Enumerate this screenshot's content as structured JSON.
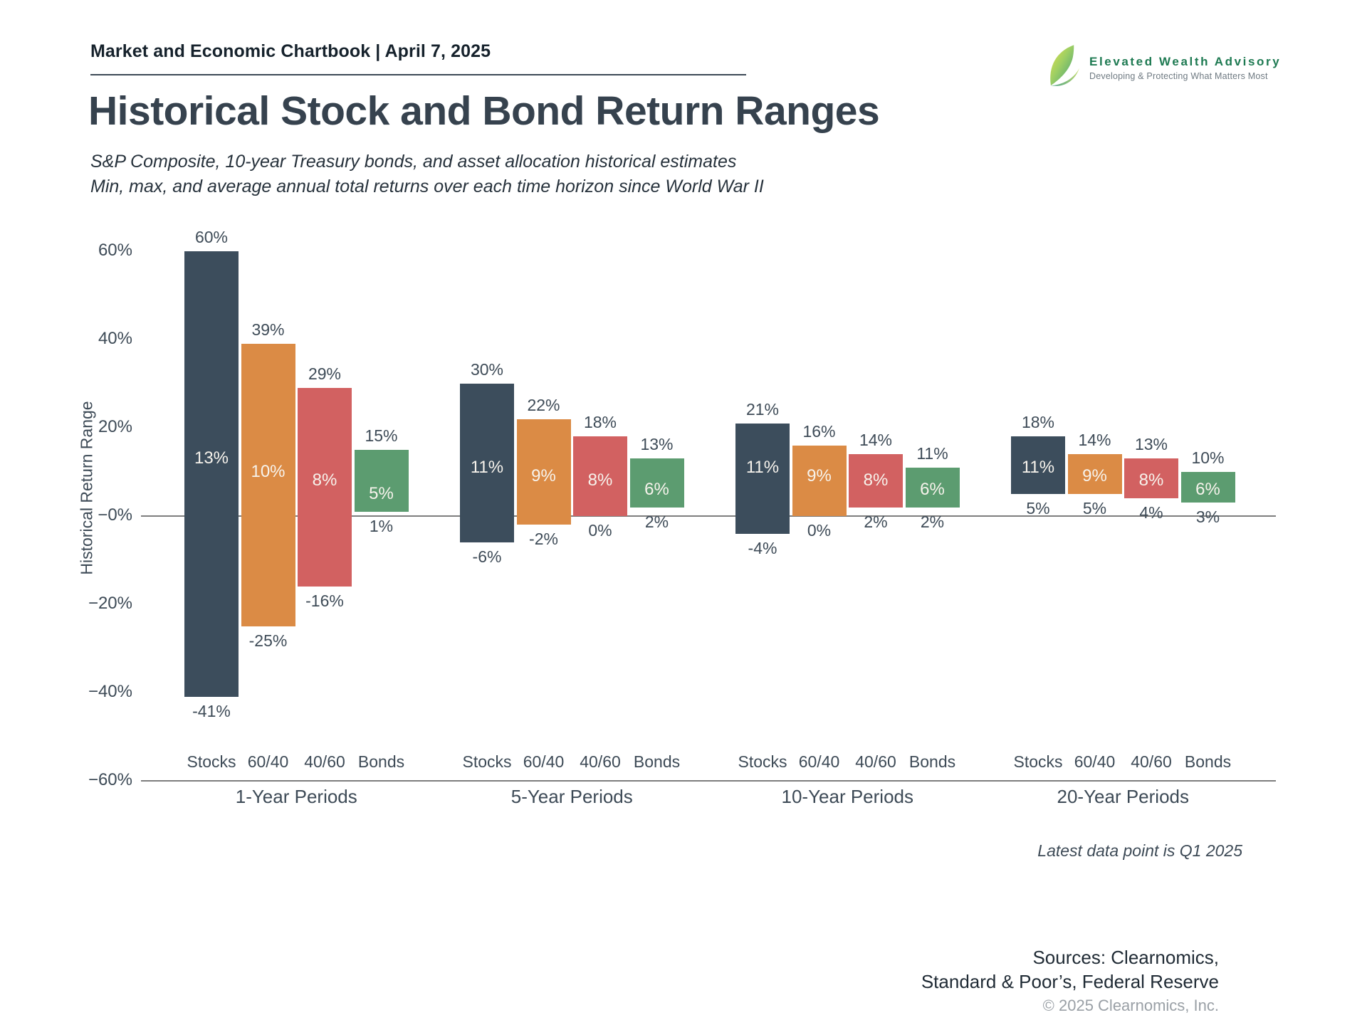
{
  "header": {
    "chartbook_title": "Market and Economic Chartbook | April 7, 2025"
  },
  "logo": {
    "name": "Elevated Wealth Advisory",
    "tagline": "Developing & Protecting What Matters Most",
    "accent_green": "#1e7a52"
  },
  "title": "Historical Stock and Bond Return Ranges",
  "subtitle_line1": "S&P Composite, 10-year Treasury bonds, and asset allocation historical estimates",
  "subtitle_line2": "Min, max, and average annual total returns over each time horizon since World War II",
  "chart_data": {
    "type": "bar",
    "variant": "floating-min-max-range-bars",
    "title": "Historical Stock and Bond Return Ranges",
    "ylabel": "Historical Return Range",
    "ylim": [
      -60,
      60
    ],
    "grid": false,
    "yticks": [
      {
        "label": "60%",
        "value": 60
      },
      {
        "label": "40%",
        "value": 40
      },
      {
        "label": "20%",
        "value": 20
      },
      {
        "label": "−0%",
        "value": 0
      },
      {
        "label": "−20%",
        "value": -20
      },
      {
        "label": "−40%",
        "value": -40
      },
      {
        "label": "−60%",
        "value": -60
      }
    ],
    "series_labels": [
      "Stocks",
      "60/40",
      "40/60",
      "Bonds"
    ],
    "colors": {
      "stocks": "#3c4d5c",
      "60_40": "#db8b45",
      "40_60": "#d26161",
      "bonds": "#5c9c70"
    },
    "groups": [
      {
        "label": "1-Year Periods",
        "bars": [
          {
            "name": "Stocks",
            "max": 60,
            "avg": 13,
            "min": -41
          },
          {
            "name": "60/40",
            "max": 39,
            "avg": 10,
            "min": -25
          },
          {
            "name": "40/60",
            "max": 29,
            "avg": 8,
            "min": -16
          },
          {
            "name": "Bonds",
            "max": 15,
            "avg": 5,
            "min": 1
          }
        ]
      },
      {
        "label": "5-Year Periods",
        "bars": [
          {
            "name": "Stocks",
            "max": 30,
            "avg": 11,
            "min": -6
          },
          {
            "name": "60/40",
            "max": 22,
            "avg": 9,
            "min": -2
          },
          {
            "name": "40/60",
            "max": 18,
            "avg": 8,
            "min": 0
          },
          {
            "name": "Bonds",
            "max": 13,
            "avg": 6,
            "min": 2
          }
        ]
      },
      {
        "label": "10-Year Periods",
        "bars": [
          {
            "name": "Stocks",
            "max": 21,
            "avg": 11,
            "min": -4
          },
          {
            "name": "60/40",
            "max": 16,
            "avg": 9,
            "min": 0
          },
          {
            "name": "40/60",
            "max": 14,
            "avg": 8,
            "min": 2
          },
          {
            "name": "Bonds",
            "max": 11,
            "avg": 6,
            "min": 2
          }
        ]
      },
      {
        "label": "20-Year Periods",
        "bars": [
          {
            "name": "Stocks",
            "max": 18,
            "avg": 11,
            "min": 5
          },
          {
            "name": "60/40",
            "max": 14,
            "avg": 9,
            "min": 5
          },
          {
            "name": "40/60",
            "max": 13,
            "avg": 8,
            "min": 4
          },
          {
            "name": "Bonds",
            "max": 10,
            "avg": 6,
            "min": 3
          }
        ]
      }
    ]
  },
  "annotations": {
    "latest_data_note": "Latest data point is Q1 2025"
  },
  "footer": {
    "sources_line1": "Sources: Clearnomics,",
    "sources_line2": "Standard & Poor’s, Federal Reserve",
    "copyright": "© 2025 Clearnomics, Inc."
  }
}
